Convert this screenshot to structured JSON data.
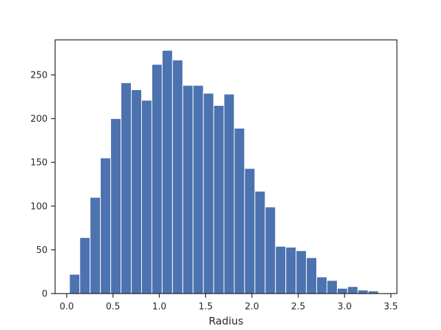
{
  "chart_data": {
    "type": "bar",
    "title": "",
    "xlabel": "Radius",
    "ylabel": "",
    "xlim": [
      -0.125,
      3.565
    ],
    "ylim": [
      0,
      290
    ],
    "xticks": [
      0.0,
      0.5,
      1.0,
      1.5,
      2.0,
      2.5,
      3.0,
      3.5
    ],
    "xtick_labels": [
      "0.0",
      "0.5",
      "1.0",
      "1.5",
      "2.0",
      "2.5",
      "3.0",
      "3.5"
    ],
    "yticks": [
      0,
      50,
      100,
      150,
      200,
      250
    ],
    "ytick_labels": [
      "0",
      "50",
      "100",
      "150",
      "200",
      "250"
    ],
    "grid": false,
    "bar_color": "#4c72b0",
    "bins": {
      "start": 0.03,
      "width": 0.1112,
      "counts": [
        22,
        64,
        110,
        155,
        200,
        241,
        233,
        221,
        262,
        278,
        267,
        238,
        238,
        229,
        215,
        228,
        189,
        143,
        117,
        99,
        54,
        53,
        49,
        41,
        19,
        15,
        6,
        8,
        4,
        3
      ]
    }
  }
}
